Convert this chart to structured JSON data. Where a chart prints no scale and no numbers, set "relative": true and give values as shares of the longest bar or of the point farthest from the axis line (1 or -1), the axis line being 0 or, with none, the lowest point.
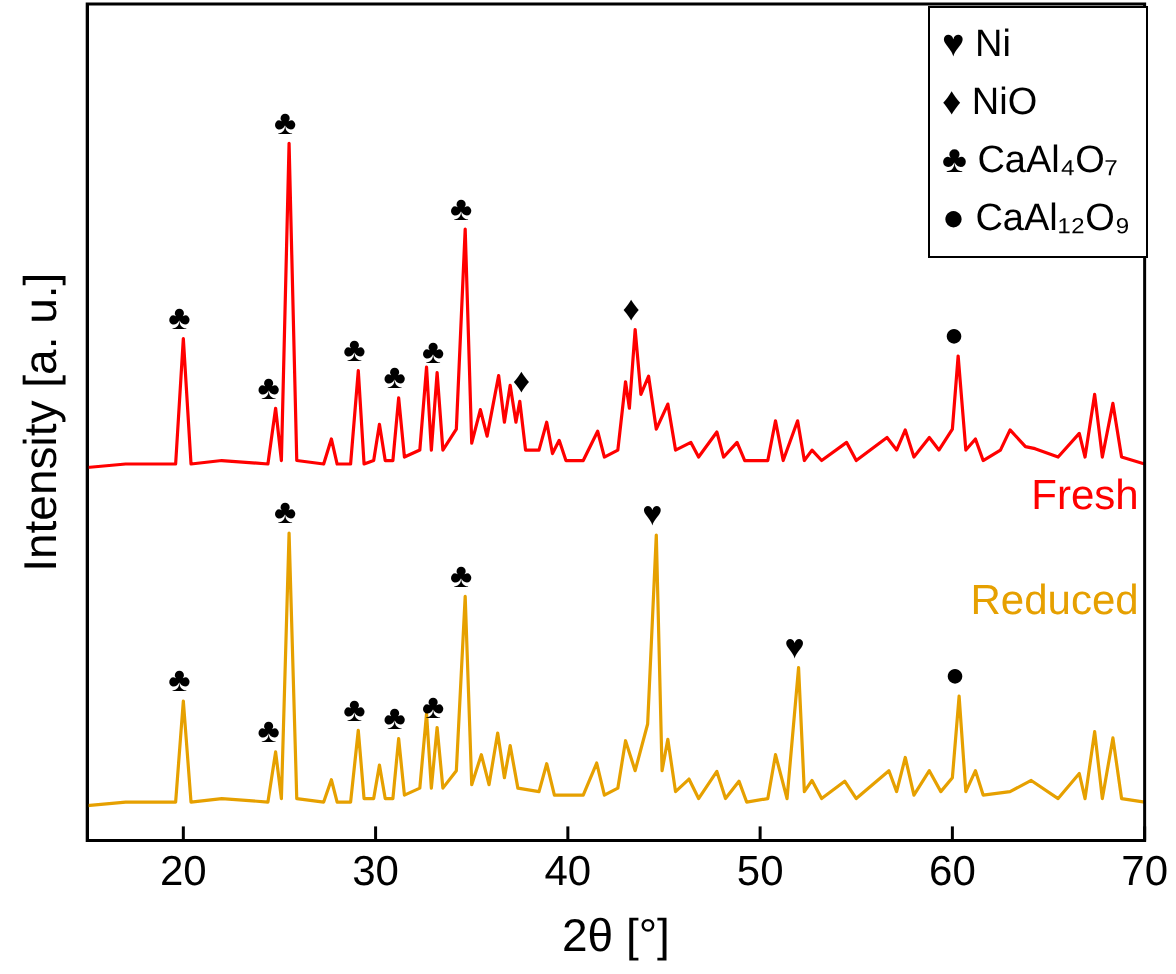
{
  "chart_data": {
    "type": "line",
    "relative": true,
    "xlabel": "2θ [°]",
    "ylabel": "Intensity [a. u.]",
    "xlim": [
      15,
      70
    ],
    "xticks": [
      20,
      30,
      40,
      50,
      60,
      70
    ],
    "grid": false,
    "legend": false,
    "marker": "none",
    "series": [
      {
        "name": "Fresh",
        "color": "#ff0000",
        "x": [
          15,
          17,
          19.6,
          20.0,
          20.4,
          22,
          24.4,
          24.8,
          25.1,
          25.5,
          25.9,
          27.3,
          27.7,
          28.0,
          28.7,
          29.1,
          29.4,
          29.9,
          30.2,
          30.5,
          30.9,
          31.2,
          31.5,
          32.3,
          32.65,
          32.9,
          33.2,
          33.5,
          34.2,
          34.66,
          35.0,
          35.45,
          35.8,
          36.4,
          36.7,
          37.0,
          37.3,
          37.5,
          37.8,
          38.5,
          38.9,
          39.2,
          39.55,
          39.9,
          40.8,
          41.55,
          41.9,
          42.6,
          43.0,
          43.2,
          43.5,
          43.8,
          44.2,
          44.6,
          45.2,
          45.6,
          46.4,
          46.8,
          47.75,
          48.1,
          48.8,
          49.2,
          50.4,
          50.8,
          51.2,
          51.95,
          52.3,
          52.7,
          53.2,
          54.5,
          55.0,
          56.6,
          57.1,
          57.55,
          58.0,
          58.8,
          59.3,
          60.0,
          60.3,
          60.7,
          61.2,
          61.6,
          62.5,
          63.0,
          63.8,
          64.3,
          65.5,
          66.6,
          66.9,
          67.4,
          67.8,
          68.35,
          68.8,
          70
        ],
        "values": [
          0.535,
          0.54,
          0.54,
          0.72,
          0.54,
          0.545,
          0.54,
          0.62,
          0.545,
          1.0,
          0.545,
          0.54,
          0.576,
          0.54,
          0.54,
          0.674,
          0.54,
          0.545,
          0.597,
          0.545,
          0.545,
          0.635,
          0.55,
          0.56,
          0.679,
          0.56,
          0.671,
          0.56,
          0.59,
          0.877,
          0.57,
          0.618,
          0.58,
          0.667,
          0.6,
          0.653,
          0.6,
          0.63,
          0.56,
          0.56,
          0.6,
          0.555,
          0.574,
          0.545,
          0.545,
          0.587,
          0.55,
          0.56,
          0.658,
          0.62,
          0.733,
          0.64,
          0.666,
          0.59,
          0.626,
          0.56,
          0.571,
          0.55,
          0.586,
          0.55,
          0.571,
          0.545,
          0.545,
          0.602,
          0.545,
          0.602,
          0.545,
          0.56,
          0.545,
          0.571,
          0.545,
          0.578,
          0.56,
          0.589,
          0.55,
          0.578,
          0.56,
          0.59,
          0.695,
          0.56,
          0.576,
          0.545,
          0.56,
          0.589,
          0.565,
          0.562,
          0.55,
          0.584,
          0.55,
          0.64,
          0.55,
          0.627,
          0.55,
          0.54
        ]
      },
      {
        "name": "Reduced",
        "color": "#e6a000",
        "x": [
          15,
          17,
          19.6,
          20.0,
          20.4,
          22,
          24.4,
          24.8,
          25.1,
          25.5,
          25.9,
          27.3,
          27.7,
          28.0,
          28.7,
          29.1,
          29.4,
          29.9,
          30.2,
          30.5,
          30.9,
          31.2,
          31.5,
          32.3,
          32.65,
          32.9,
          33.2,
          33.5,
          34.2,
          34.66,
          35.0,
          35.5,
          35.9,
          36.35,
          36.7,
          37.0,
          37.4,
          38.5,
          38.9,
          39.3,
          40.8,
          41.5,
          41.9,
          42.6,
          43.0,
          43.5,
          44.15,
          44.6,
          44.9,
          45.2,
          45.6,
          46.3,
          46.8,
          47.75,
          48.2,
          48.9,
          49.3,
          50.4,
          50.8,
          51.4,
          52.0,
          52.3,
          52.7,
          53.2,
          54.4,
          55.0,
          56.7,
          57.1,
          57.55,
          58.0,
          58.8,
          59.4,
          60.0,
          60.35,
          60.7,
          61.2,
          61.6,
          63.0,
          64.1,
          65.5,
          66.6,
          66.9,
          67.4,
          67.8,
          68.35,
          68.8,
          70
        ],
        "values": [
          0.05,
          0.055,
          0.055,
          0.2,
          0.055,
          0.06,
          0.055,
          0.127,
          0.06,
          0.441,
          0.06,
          0.055,
          0.087,
          0.055,
          0.055,
          0.158,
          0.06,
          0.06,
          0.108,
          0.06,
          0.06,
          0.146,
          0.065,
          0.075,
          0.182,
          0.075,
          0.162,
          0.075,
          0.1,
          0.35,
          0.08,
          0.123,
          0.08,
          0.154,
          0.09,
          0.136,
          0.075,
          0.07,
          0.11,
          0.065,
          0.065,
          0.111,
          0.065,
          0.075,
          0.143,
          0.1,
          0.167,
          0.438,
          0.1,
          0.145,
          0.07,
          0.088,
          0.06,
          0.099,
          0.06,
          0.085,
          0.055,
          0.06,
          0.123,
          0.06,
          0.248,
          0.07,
          0.086,
          0.06,
          0.085,
          0.06,
          0.1,
          0.07,
          0.119,
          0.065,
          0.1,
          0.07,
          0.09,
          0.207,
          0.07,
          0.1,
          0.065,
          0.07,
          0.086,
          0.06,
          0.096,
          0.06,
          0.156,
          0.06,
          0.147,
          0.06,
          0.055
        ]
      }
    ],
    "annotations": [
      {
        "text": "♣",
        "x": 20.0,
        "y": 0.72
      },
      {
        "text": "♣",
        "x": 24.65,
        "y": 0.62
      },
      {
        "text": "♣",
        "x": 25.5,
        "y": 1.0
      },
      {
        "text": "♣",
        "x": 29.1,
        "y": 0.674
      },
      {
        "text": "♣",
        "x": 31.2,
        "y": 0.635
      },
      {
        "text": "♣",
        "x": 33.2,
        "y": 0.671
      },
      {
        "text": "♣",
        "x": 34.66,
        "y": 0.877
      },
      {
        "text": "♦",
        "x": 37.8,
        "y": 0.63
      },
      {
        "text": "♦",
        "x": 43.5,
        "y": 0.733
      },
      {
        "text": "●",
        "x": 60.3,
        "y": 0.695
      },
      {
        "text": "♣",
        "x": 20.0,
        "y": 0.2
      },
      {
        "text": "♣",
        "x": 24.65,
        "y": 0.127
      },
      {
        "text": "♣",
        "x": 25.5,
        "y": 0.441
      },
      {
        "text": "♣",
        "x": 29.1,
        "y": 0.158
      },
      {
        "text": "♣",
        "x": 31.2,
        "y": 0.146
      },
      {
        "text": "♣",
        "x": 33.2,
        "y": 0.162
      },
      {
        "text": "♣",
        "x": 34.66,
        "y": 0.35
      },
      {
        "text": "♥",
        "x": 44.6,
        "y": 0.438
      },
      {
        "text": "♥",
        "x": 52.0,
        "y": 0.248
      },
      {
        "text": "●",
        "x": 60.35,
        "y": 0.207
      },
      "♥ Ni",
      "♦ NiO",
      "♣ CaAl₄O₇",
      "● CaAl₁₂O₉"
    ]
  }
}
